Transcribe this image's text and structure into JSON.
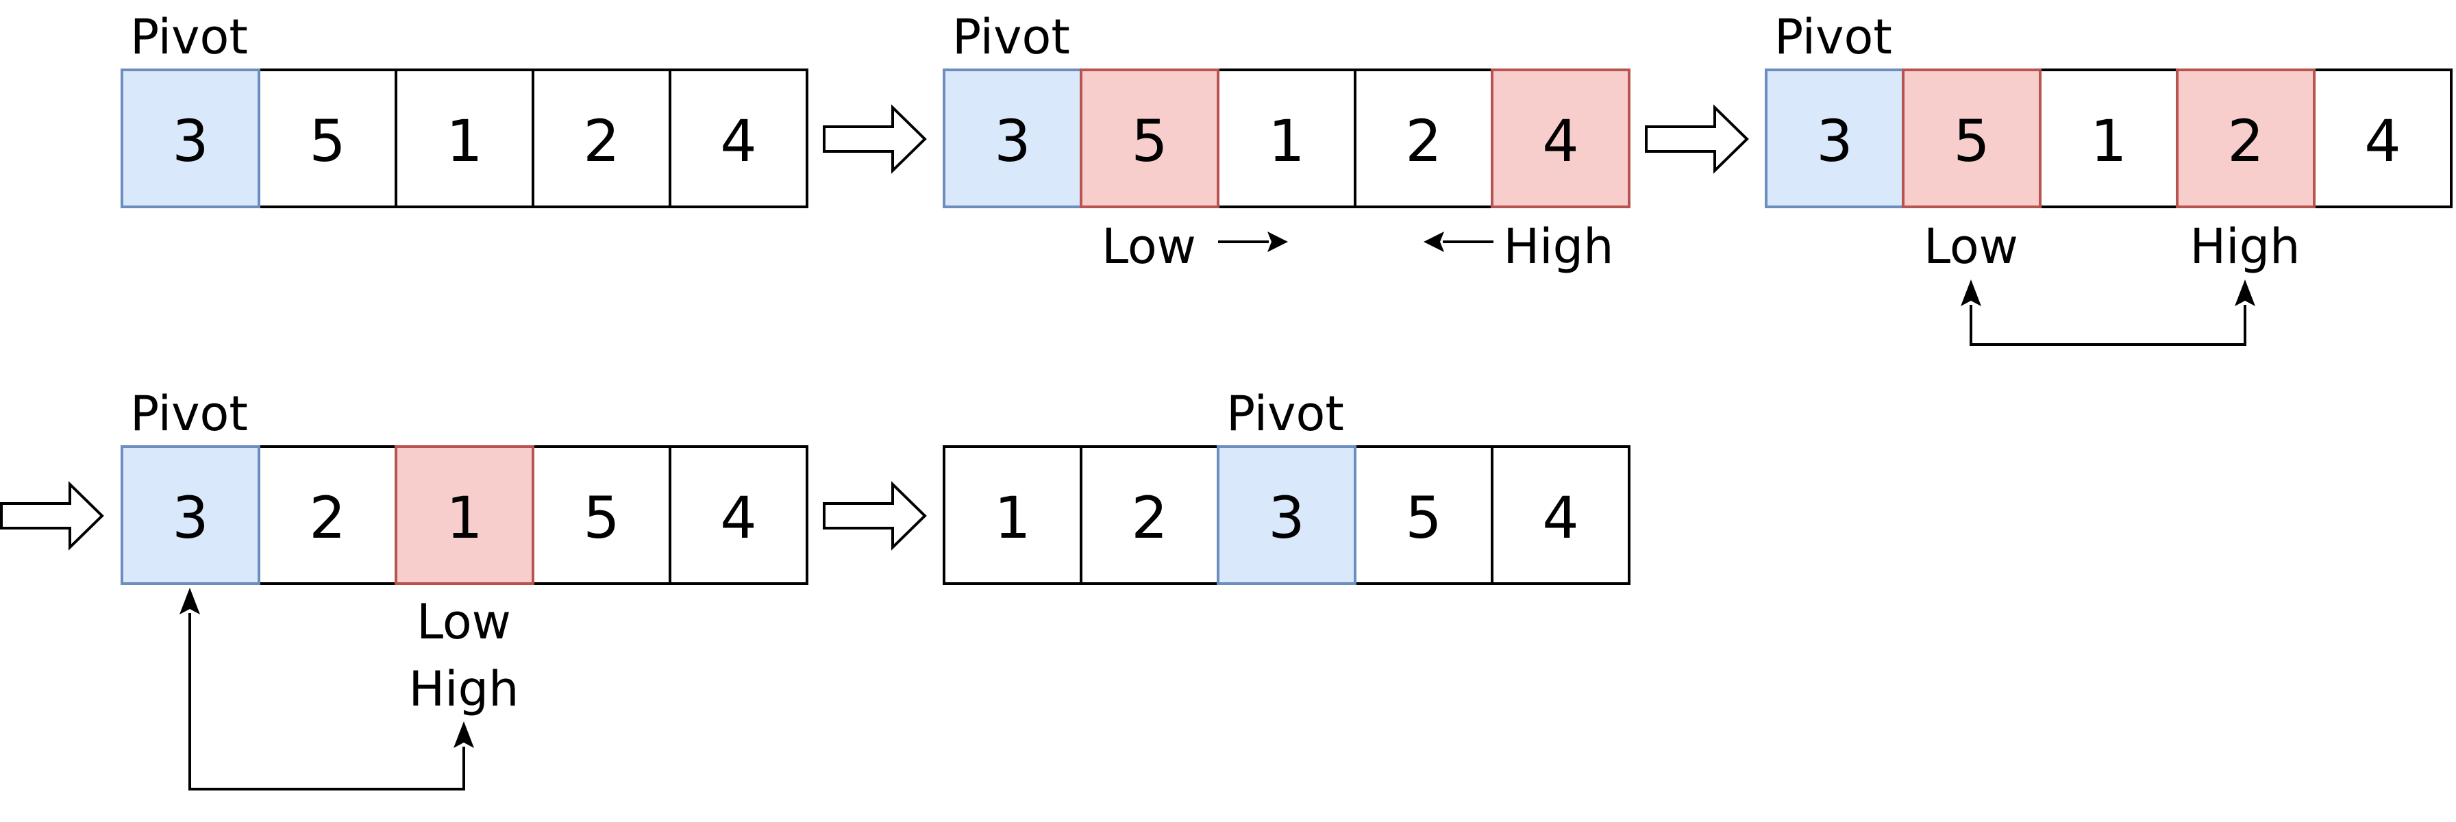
{
  "colors": {
    "pivot_fill": "#dae8fc",
    "pivot_stroke": "#6c8ebf",
    "hl_fill": "#f8cecc",
    "hl_stroke": "#b85450",
    "plain_fill": "#ffffff",
    "plain_stroke": "#000000"
  },
  "steps": [
    {
      "cells": [
        {
          "value": "3",
          "state": "pivot"
        },
        {
          "value": "5",
          "state": "plain"
        },
        {
          "value": "1",
          "state": "plain"
        },
        {
          "value": "2",
          "state": "plain"
        },
        {
          "value": "4",
          "state": "plain"
        }
      ],
      "pivot_label": "Pivot"
    },
    {
      "cells": [
        {
          "value": "3",
          "state": "pivot"
        },
        {
          "value": "5",
          "state": "highlight"
        },
        {
          "value": "1",
          "state": "plain"
        },
        {
          "value": "2",
          "state": "plain"
        },
        {
          "value": "4",
          "state": "highlight"
        }
      ],
      "pivot_label": "Pivot",
      "low_label": "Low",
      "high_label": "High"
    },
    {
      "cells": [
        {
          "value": "3",
          "state": "pivot"
        },
        {
          "value": "5",
          "state": "highlight"
        },
        {
          "value": "1",
          "state": "plain"
        },
        {
          "value": "2",
          "state": "highlight"
        },
        {
          "value": "4",
          "state": "plain"
        }
      ],
      "pivot_label": "Pivot",
      "low_label": "Low",
      "high_label": "High"
    },
    {
      "cells": [
        {
          "value": "3",
          "state": "pivot"
        },
        {
          "value": "2",
          "state": "plain"
        },
        {
          "value": "1",
          "state": "highlight"
        },
        {
          "value": "5",
          "state": "plain"
        },
        {
          "value": "4",
          "state": "plain"
        }
      ],
      "pivot_label": "Pivot",
      "low_label": "Low",
      "high_label": "High"
    },
    {
      "cells": [
        {
          "value": "1",
          "state": "plain"
        },
        {
          "value": "2",
          "state": "plain"
        },
        {
          "value": "3",
          "state": "pivot"
        },
        {
          "value": "5",
          "state": "plain"
        },
        {
          "value": "4",
          "state": "plain"
        }
      ],
      "pivot_label": "Pivot"
    }
  ]
}
